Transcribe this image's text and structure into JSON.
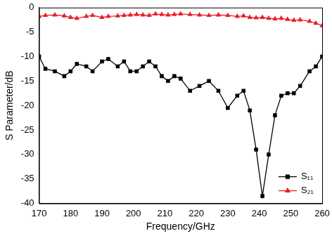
{
  "chart_data": {
    "type": "line",
    "x_label": "Frequency/GHz",
    "y_label": "S Parameter/dB",
    "x": [
      170,
      172,
      175,
      178,
      180,
      182,
      185,
      187,
      190,
      192,
      195,
      197,
      199,
      201,
      203,
      205,
      207,
      209,
      211,
      213,
      215,
      218,
      221,
      224,
      227,
      230,
      233,
      235,
      237,
      239,
      241,
      243,
      245,
      247,
      249,
      251,
      253,
      256,
      258,
      260
    ],
    "series": [
      {
        "name": "S₁₁",
        "color": "#000000",
        "marker": "square",
        "line_style": "solid",
        "values": [
          -10,
          -12.5,
          -13,
          -14,
          -13,
          -11.5,
          -12,
          -13,
          -11,
          -10.5,
          -12,
          -11,
          -13,
          -13,
          -12,
          -11,
          -12,
          -14,
          -15,
          -14,
          -14.5,
          -17,
          -16,
          -15,
          -17,
          -20.5,
          -18,
          -17,
          -21,
          -29,
          -38.5,
          -30,
          -22,
          -18,
          -17.5,
          -17.5,
          -16,
          -13,
          -12,
          -10
        ]
      },
      {
        "name": "S₂₁",
        "color": "#e8202a",
        "marker": "triangle",
        "line_style": "solid",
        "values": [
          -1.8,
          -1.6,
          -1.5,
          -1.7,
          -2,
          -2.2,
          -1.8,
          -1.6,
          -2,
          -1.8,
          -1.7,
          -1.6,
          -1.5,
          -1.4,
          -1.5,
          -1.6,
          -1.3,
          -1.4,
          -1.5,
          -1.4,
          -1.3,
          -1.4,
          -1.5,
          -1.6,
          -1.5,
          -1.6,
          -1.8,
          -1.7,
          -2,
          -2.1,
          -2,
          -2.2,
          -2.3,
          -2.2,
          -2.4,
          -2.6,
          -2.5,
          -2.8,
          -3.2,
          -3.7
        ]
      }
    ],
    "xlim": [
      170,
      260
    ],
    "xticks": [
      170,
      180,
      190,
      200,
      210,
      220,
      230,
      240,
      250,
      260
    ],
    "ylim": [
      -40,
      0
    ],
    "yticks": [
      -40,
      -35,
      -30,
      -25,
      -20,
      -15,
      -10,
      -5,
      0
    ],
    "grid": false,
    "legend": "lower right"
  }
}
